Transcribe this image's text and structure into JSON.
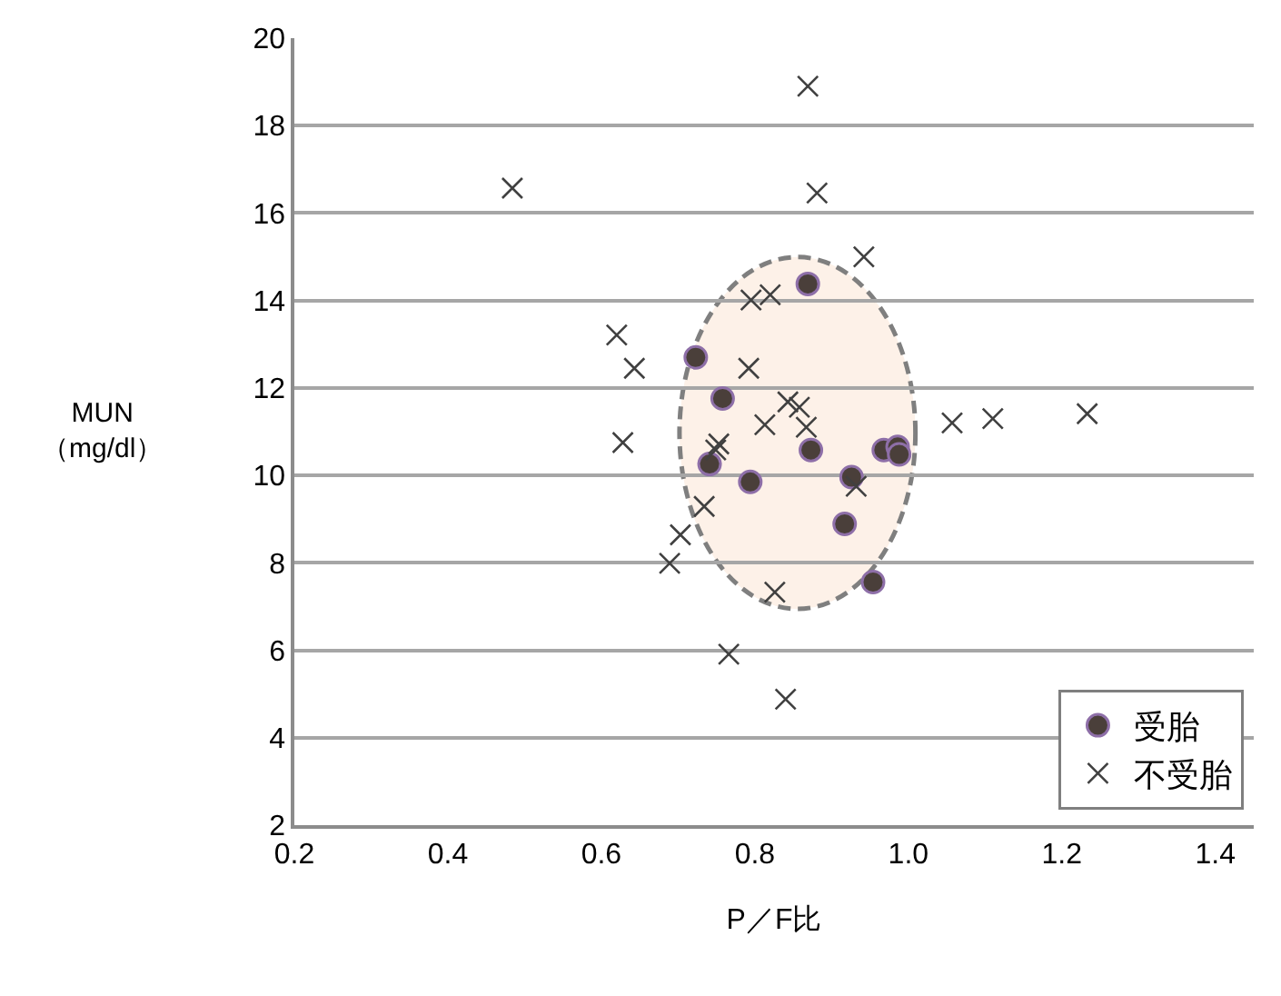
{
  "chart_data": {
    "type": "scatter",
    "xlabel": "P／F比",
    "ylabel": "MUN\n（mg/dl）",
    "xlim": [
      0.2,
      1.45
    ],
    "xticks": [
      {
        "value": 0.2,
        "label": "0.2"
      },
      {
        "value": 0.4,
        "label": "0.4"
      },
      {
        "value": 0.6,
        "label": "0.6"
      },
      {
        "value": 0.8,
        "label": "0.8"
      },
      {
        "value": 1.0,
        "label": "1.0"
      },
      {
        "value": 1.2,
        "label": "1.2"
      },
      {
        "value": 1.4,
        "label": "1.4"
      }
    ],
    "ylim": [
      2,
      20
    ],
    "yticks": [
      2,
      4,
      6,
      8,
      10,
      12,
      14,
      16,
      18,
      20
    ],
    "grid": "y",
    "legend": "bottom right",
    "series": [
      {
        "name": "受胎",
        "color": "#4a3f3a",
        "marker": "circle",
        "x": [
          0.723,
          0.758,
          0.741,
          0.794,
          0.869,
          0.873,
          0.926,
          0.917,
          0.954,
          0.968,
          0.986,
          0.988
        ],
        "values": [
          12.7,
          11.76,
          10.26,
          9.85,
          14.38,
          10.58,
          9.96,
          8.89,
          7.56,
          10.58,
          10.65,
          10.48
        ]
      },
      {
        "name": "不受胎",
        "color": "#404040",
        "marker": "cross",
        "x": [
          0.869,
          0.484,
          0.881,
          0.942,
          0.795,
          0.82,
          0.62,
          0.643,
          0.792,
          0.628,
          0.753,
          0.749,
          0.813,
          0.843,
          0.858,
          0.867,
          0.734,
          0.703,
          0.689,
          0.826,
          0.766,
          0.84,
          0.932,
          1.057,
          1.11,
          1.233
        ],
        "values": [
          18.9,
          16.57,
          16.46,
          15.0,
          14.01,
          14.13,
          13.21,
          12.45,
          12.45,
          10.75,
          10.72,
          10.58,
          11.16,
          11.68,
          11.56,
          11.1,
          9.29,
          8.64,
          7.99,
          7.33,
          5.91,
          4.88,
          9.75,
          11.2,
          11.3,
          11.41
        ]
      }
    ]
  }
}
